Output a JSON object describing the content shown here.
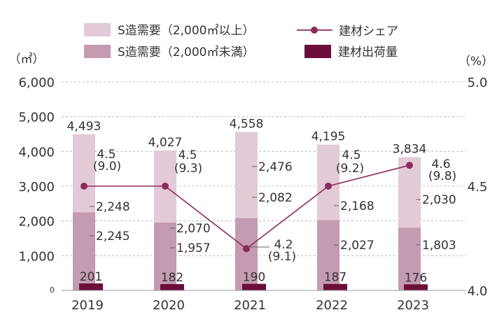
{
  "chart_data": {
    "type": "bar",
    "categories": [
      "2019",
      "2020",
      "2021",
      "2022",
      "2023"
    ],
    "series": [
      {
        "name": "S造需要（2,000㎡未満）",
        "kind": "stacked-bar",
        "axis": "left",
        "color": "#c49bb0",
        "values": [
          2245,
          1957,
          2082,
          2027,
          1803
        ],
        "labels": [
          "2,245",
          "1,957",
          "2,082",
          "2,027",
          "1,803"
        ]
      },
      {
        "name": "S造需要（2,000㎡以上）",
        "kind": "stacked-bar",
        "axis": "left",
        "color": "#e2cbd6",
        "values": [
          2248,
          2070,
          2476,
          2168,
          2030
        ],
        "labels": [
          "2,248",
          "2,070",
          "2,476",
          "2,168",
          "2,030"
        ]
      },
      {
        "name": "建材出荷量",
        "kind": "bar",
        "axis": "left",
        "color": "#6b0f3a",
        "values": [
          201,
          182,
          190,
          187,
          176
        ],
        "labels": [
          "201",
          "182",
          "190",
          "187",
          "176"
        ]
      },
      {
        "name": "建材シェア",
        "kind": "line",
        "axis": "right",
        "color": "#8e2a5a",
        "values": [
          4.5,
          4.5,
          4.2,
          4.5,
          4.6
        ],
        "labels": [
          "4.5",
          "4.5",
          "4.2",
          "4.5",
          "4.6"
        ],
        "sublabels": [
          "(9.0)",
          "(9.3)",
          "(9.1)",
          "(9.2)",
          "(9.8)"
        ]
      }
    ],
    "totals": [
      "4,493",
      "4,027",
      "4,558",
      "4,195",
      "3,834"
    ],
    "left_axis": {
      "unit": "（㎡）",
      "ylim": [
        0,
        6000
      ],
      "ticks": [
        "0",
        "1,000",
        "2,000",
        "3,000",
        "4,000",
        "5,000",
        "6,000"
      ]
    },
    "right_axis": {
      "unit": "（%）",
      "ylim": [
        4.0,
        5.0
      ],
      "ticks": [
        "4.0",
        "4.5",
        "5.0"
      ]
    },
    "grid": true,
    "legend_position": "top"
  }
}
